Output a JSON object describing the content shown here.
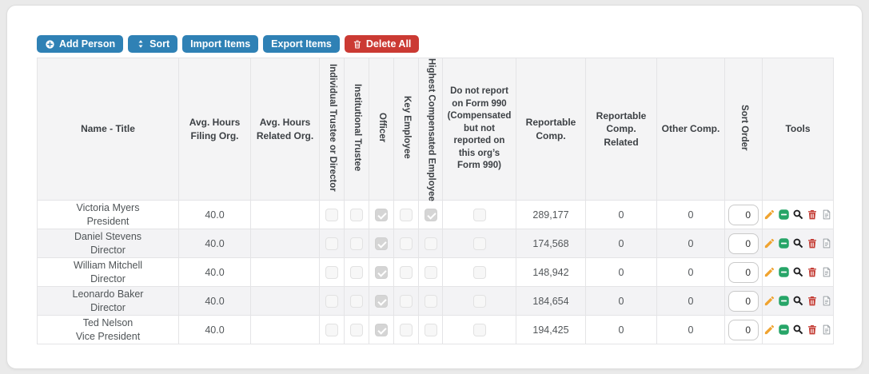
{
  "colors": {
    "primary": "#2f81b5",
    "danger": "#cb3a33",
    "edit": "#f0a32f",
    "minus_green": "#27a568",
    "trash": "#c43d35",
    "document_gray": "#9aa0a5",
    "search": "#1d1d1f"
  },
  "toolbar": {
    "add_person": "Add Person",
    "sort": "Sort",
    "import_items": "Import Items",
    "export_items": "Export Items",
    "delete_all": "Delete All"
  },
  "table": {
    "columns": {
      "name_title": "Name - Title",
      "avg_hours_filing": "Avg. Hours Filing Org.",
      "avg_hours_related": "Avg. Hours Related Org.",
      "individual_trustee": "Individual Trustee or Director",
      "institutional_trustee": "Institutional Trustee",
      "officer": "Officer",
      "key_employee": "Key Employee",
      "highest_compensated": "Highest Compensated Employee",
      "do_not_report": "Do not report on Form 990 (Compensated but not reported on this org’s Form 990)",
      "reportable_comp": "Reportable Comp.",
      "reportable_comp_related": "Reportable Comp. Related",
      "other_comp": "Other Comp.",
      "sort_order": "Sort Order",
      "tools": "Tools"
    },
    "tools_icons": [
      "edit-icon",
      "minus-square-icon",
      "search-icon",
      "trash-icon",
      "document-icon"
    ],
    "rows": [
      {
        "name": "Victoria Myers",
        "title": "President",
        "avg_hours_filing": "40.0",
        "avg_hours_related": "",
        "individual_trustee": false,
        "institutional_trustee": false,
        "officer": true,
        "key_employee": false,
        "highest_compensated": true,
        "do_not_report": false,
        "reportable_comp": "289,177",
        "reportable_comp_related": "0",
        "other_comp": "0",
        "sort_order": "0"
      },
      {
        "name": "Daniel Stevens",
        "title": "Director",
        "avg_hours_filing": "40.0",
        "avg_hours_related": "",
        "individual_trustee": false,
        "institutional_trustee": false,
        "officer": true,
        "key_employee": false,
        "highest_compensated": false,
        "do_not_report": false,
        "reportable_comp": "174,568",
        "reportable_comp_related": "0",
        "other_comp": "0",
        "sort_order": "0"
      },
      {
        "name": "William Mitchell",
        "title": "Director",
        "avg_hours_filing": "40.0",
        "avg_hours_related": "",
        "individual_trustee": false,
        "institutional_trustee": false,
        "officer": true,
        "key_employee": false,
        "highest_compensated": false,
        "do_not_report": false,
        "reportable_comp": "148,942",
        "reportable_comp_related": "0",
        "other_comp": "0",
        "sort_order": "0"
      },
      {
        "name": "Leonardo Baker",
        "title": "Director",
        "avg_hours_filing": "40.0",
        "avg_hours_related": "",
        "individual_trustee": false,
        "institutional_trustee": false,
        "officer": true,
        "key_employee": false,
        "highest_compensated": false,
        "do_not_report": false,
        "reportable_comp": "184,654",
        "reportable_comp_related": "0",
        "other_comp": "0",
        "sort_order": "0"
      },
      {
        "name": "Ted Nelson",
        "title": "Vice President",
        "avg_hours_filing": "40.0",
        "avg_hours_related": "",
        "individual_trustee": false,
        "institutional_trustee": false,
        "officer": true,
        "key_employee": false,
        "highest_compensated": false,
        "do_not_report": false,
        "reportable_comp": "194,425",
        "reportable_comp_related": "0",
        "other_comp": "0",
        "sort_order": "0"
      }
    ]
  }
}
